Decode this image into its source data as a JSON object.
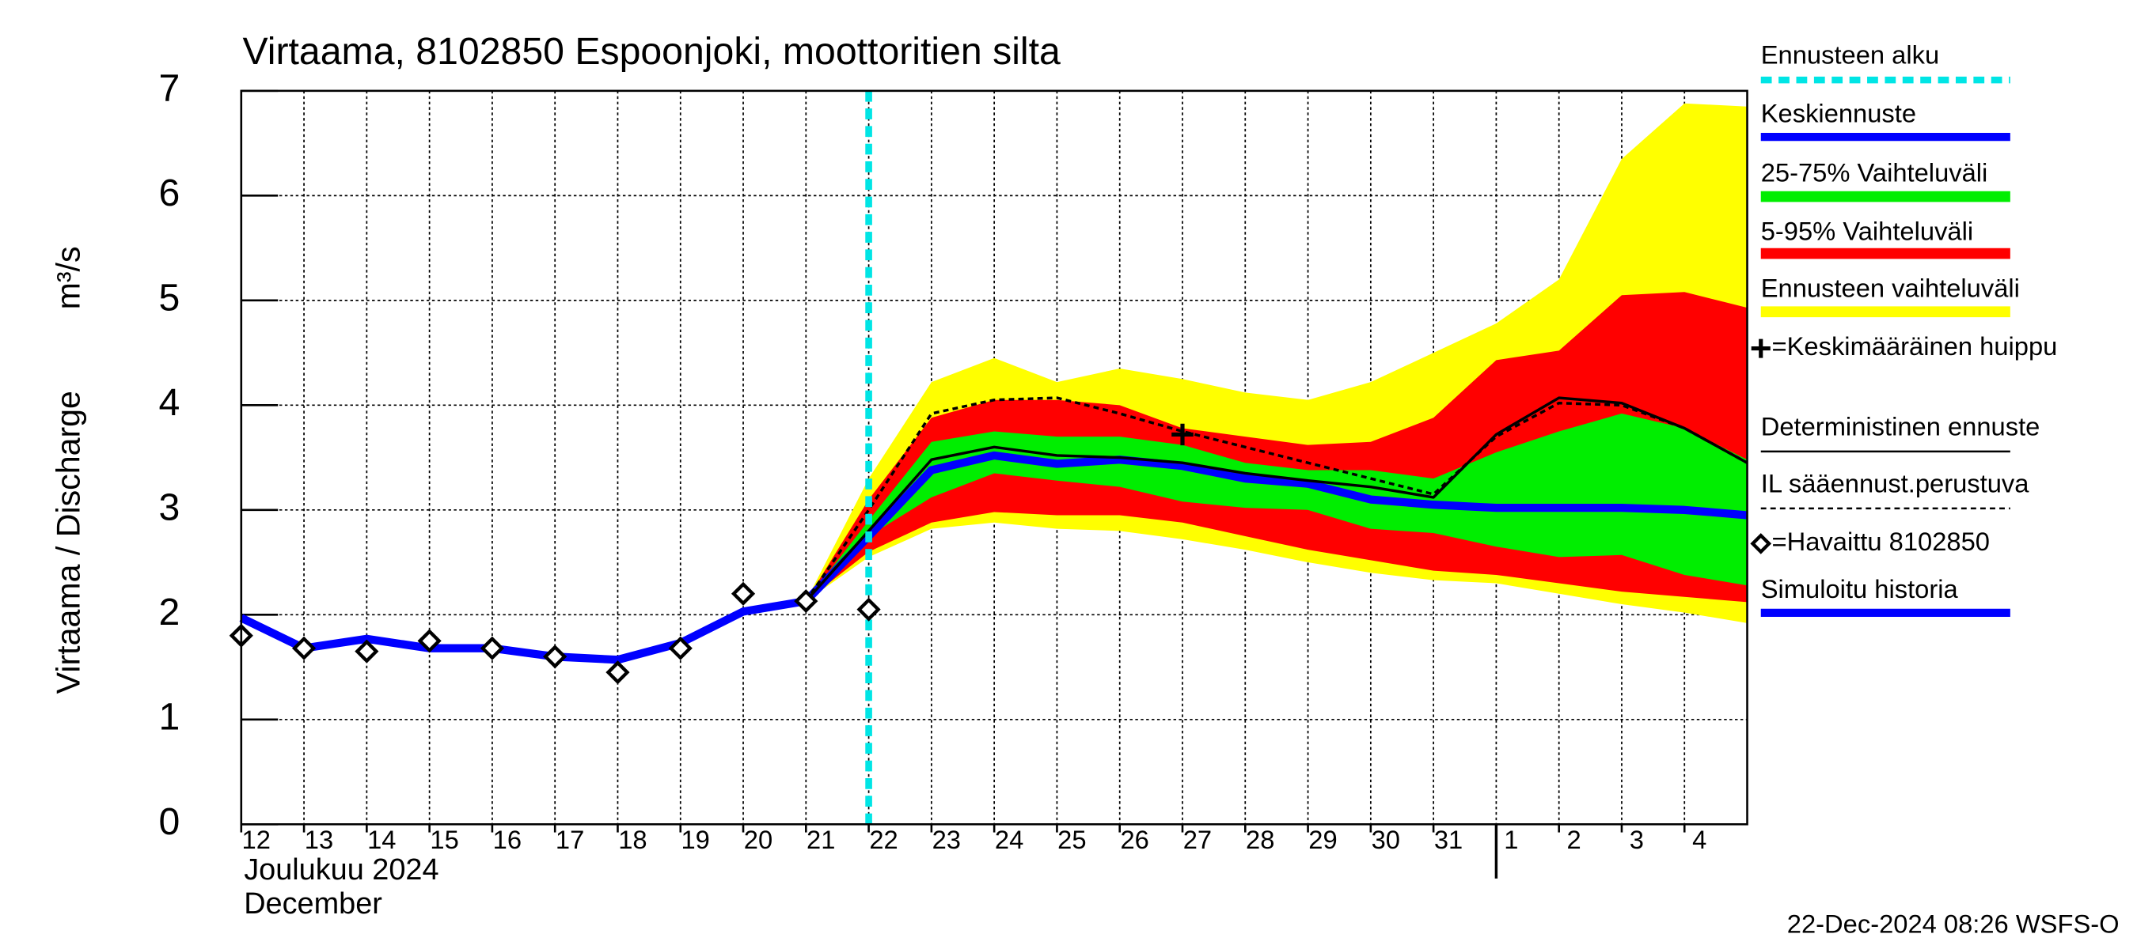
{
  "chart_data": {
    "type": "forecast",
    "title": "Virtaama, 8102850 Espoonjoki, moottoritien silta",
    "ylabel": "Virtaama / Discharge",
    "yunit": "m³/s",
    "xlabel": "Joulukuu  2024",
    "xlabel2": "December",
    "footer": "22-Dec-2024 08:26 WSFS-O",
    "x": [
      0,
      1,
      2,
      3,
      4,
      5,
      6,
      7,
      8,
      9,
      10,
      11,
      12,
      13,
      14,
      15,
      16,
      17,
      18,
      19,
      20,
      21,
      22,
      23,
      24
    ],
    "xlim": [
      0,
      24
    ],
    "ylim": [
      0,
      7
    ],
    "yticks": [
      0,
      1,
      2,
      3,
      4,
      5,
      6,
      7
    ],
    "xticks": [
      {
        "value": 0,
        "label": "12"
      },
      {
        "value": 1,
        "label": "13"
      },
      {
        "value": 2,
        "label": "14"
      },
      {
        "value": 3,
        "label": "15"
      },
      {
        "value": 4,
        "label": "16"
      },
      {
        "value": 5,
        "label": "17"
      },
      {
        "value": 6,
        "label": "18"
      },
      {
        "value": 7,
        "label": "19"
      },
      {
        "value": 8,
        "label": "20"
      },
      {
        "value": 9,
        "label": "21"
      },
      {
        "value": 10,
        "label": "22"
      },
      {
        "value": 11,
        "label": "23"
      },
      {
        "value": 12,
        "label": "24"
      },
      {
        "value": 13,
        "label": "25"
      },
      {
        "value": 14,
        "label": "26"
      },
      {
        "value": 15,
        "label": "27"
      },
      {
        "value": 16,
        "label": "28"
      },
      {
        "value": 17,
        "label": "29"
      },
      {
        "value": 18,
        "label": "30"
      },
      {
        "value": 19,
        "label": "31"
      },
      {
        "value": 20,
        "label": "1"
      },
      {
        "value": 21,
        "label": "2"
      },
      {
        "value": 22,
        "label": "3"
      },
      {
        "value": 23,
        "label": "4"
      }
    ],
    "month_break": 20,
    "grid": true,
    "forecast_start": {
      "label": "Ennusteen alku",
      "x": 10,
      "color": "#00e5e5"
    },
    "peak": {
      "label": "=Keskimääräinen huippu",
      "x": 15,
      "y": 3.72
    },
    "series": [
      {
        "name": "Keskiennuste",
        "kind": "line",
        "color": "#0000ff",
        "width": 6,
        "values": [
          null,
          null,
          null,
          null,
          null,
          null,
          null,
          null,
          null,
          2.13,
          2.75,
          3.38,
          3.52,
          3.44,
          3.48,
          3.42,
          3.3,
          3.25,
          3.1,
          3.05,
          3.02,
          3.02,
          3.02,
          3.0,
          2.95
        ]
      },
      {
        "name": "25-75% Vaihteluväli",
        "kind": "band",
        "color": "#00ee00",
        "upper": [
          null,
          null,
          null,
          null,
          null,
          null,
          null,
          null,
          null,
          2.13,
          2.9,
          3.65,
          3.75,
          3.7,
          3.7,
          3.62,
          3.45,
          3.38,
          3.38,
          3.3,
          3.55,
          3.75,
          3.92,
          3.78,
          3.48
        ],
        "lower": [
          null,
          null,
          null,
          null,
          null,
          null,
          null,
          null,
          null,
          2.13,
          2.75,
          3.12,
          3.35,
          3.28,
          3.22,
          3.08,
          3.02,
          3.0,
          2.82,
          2.78,
          2.65,
          2.55,
          2.57,
          2.38,
          2.28
        ]
      },
      {
        "name": "5-95% Vaihteluväli",
        "kind": "band",
        "color": "#ff0000",
        "upper": [
          null,
          null,
          null,
          null,
          null,
          null,
          null,
          null,
          null,
          2.13,
          3.1,
          3.88,
          4.05,
          4.05,
          4.0,
          3.78,
          3.7,
          3.62,
          3.65,
          3.88,
          4.43,
          4.52,
          5.05,
          5.08,
          4.93
        ],
        "lower": [
          null,
          null,
          null,
          null,
          null,
          null,
          null,
          null,
          null,
          2.13,
          2.6,
          2.88,
          2.98,
          2.95,
          2.95,
          2.88,
          2.75,
          2.62,
          2.52,
          2.42,
          2.38,
          2.3,
          2.22,
          2.17,
          2.12
        ]
      },
      {
        "name": "Ennusteen vaihteluväli",
        "kind": "band",
        "color": "#ffff00",
        "upper": [
          null,
          null,
          null,
          null,
          null,
          null,
          null,
          null,
          null,
          2.13,
          3.3,
          4.22,
          4.45,
          4.22,
          4.35,
          4.25,
          4.12,
          4.05,
          4.22,
          4.5,
          4.78,
          5.2,
          6.35,
          6.88,
          6.85
        ],
        "lower": [
          null,
          null,
          null,
          null,
          null,
          null,
          null,
          null,
          null,
          2.13,
          2.55,
          2.82,
          2.88,
          2.82,
          2.8,
          2.72,
          2.62,
          2.5,
          2.4,
          2.33,
          2.3,
          2.2,
          2.1,
          2.02,
          1.92
        ]
      },
      {
        "name": "Deterministinen ennuste",
        "kind": "line",
        "color": "#000000",
        "width": 2,
        "values": [
          null,
          null,
          null,
          null,
          null,
          null,
          null,
          null,
          null,
          2.13,
          2.8,
          3.48,
          3.6,
          3.52,
          3.5,
          3.45,
          3.35,
          3.28,
          3.22,
          3.12,
          3.72,
          4.07,
          4.02,
          3.78,
          3.45
        ]
      },
      {
        "name": "IL sääennust.perustuva",
        "kind": "line",
        "color": "#000000",
        "width": 2,
        "dash": true,
        "values": [
          null,
          null,
          null,
          null,
          null,
          null,
          null,
          null,
          null,
          2.13,
          3.0,
          3.92,
          4.05,
          4.07,
          3.92,
          3.75,
          3.6,
          3.45,
          3.3,
          3.15,
          3.7,
          4.02,
          4.0,
          3.78,
          3.45
        ]
      },
      {
        "name": "=Havaittu 8102850",
        "kind": "points",
        "color": "#000000",
        "values": [
          1.8,
          1.68,
          1.65,
          1.75,
          1.68,
          1.6,
          1.45,
          1.68,
          2.2,
          2.13,
          2.05,
          null,
          null,
          null,
          null,
          null,
          null,
          null,
          null,
          null,
          null,
          null,
          null,
          null,
          null
        ]
      },
      {
        "name": "Simuloitu historia",
        "kind": "line",
        "color": "#0000ff",
        "width": 6,
        "values": [
          1.97,
          1.68,
          1.77,
          1.68,
          1.68,
          1.6,
          1.57,
          1.73,
          2.03,
          2.13,
          null,
          null,
          null,
          null,
          null,
          null,
          null,
          null,
          null,
          null,
          null,
          null,
          null,
          null,
          null
        ]
      }
    ]
  }
}
